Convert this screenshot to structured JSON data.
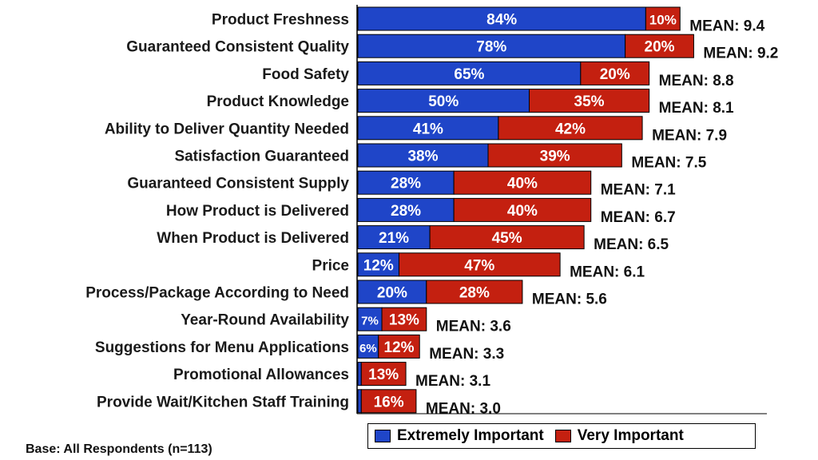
{
  "chart_data": {
    "type": "bar",
    "orientation": "horizontal",
    "stacked": true,
    "categories": [
      "Product Freshness",
      "Guaranteed Consistent Quality",
      "Food Safety",
      "Product Knowledge",
      "Ability to Deliver Quantity Needed",
      "Satisfaction Guaranteed",
      "Guaranteed Consistent Supply",
      "How Product is Delivered",
      "When Product is Delivered",
      "Price",
      "Process/Package According to Need",
      "Year-Round Availability",
      "Suggestions for Menu Applications",
      "Promotional Allowances",
      "Provide Wait/Kitchen Staff Training"
    ],
    "series": [
      {
        "name": "Extremely Important",
        "color": "#1f45c8",
        "values": [
          84,
          78,
          65,
          50,
          41,
          38,
          28,
          28,
          21,
          12,
          20,
          7,
          6,
          1,
          1
        ],
        "labels": [
          "84%",
          "78%",
          "65%",
          "50%",
          "41%",
          "38%",
          "28%",
          "28%",
          "21%",
          "12%",
          "20%",
          "7%",
          "6%",
          "",
          ""
        ]
      },
      {
        "name": "Very Important",
        "color": "#c42010",
        "values": [
          10,
          20,
          20,
          35,
          42,
          39,
          40,
          40,
          45,
          47,
          28,
          13,
          12,
          13,
          16
        ],
        "labels": [
          "10%",
          "20%",
          "20%",
          "35%",
          "42%",
          "39%",
          "40%",
          "40%",
          "45%",
          "47%",
          "28%",
          "13%",
          "12%",
          "13%",
          "16%"
        ]
      }
    ],
    "means": [
      "MEAN: 9.4",
      "MEAN: 9.2",
      "MEAN: 8.8",
      "MEAN: 8.1",
      "MEAN: 7.9",
      "MEAN: 7.5",
      "MEAN: 7.1",
      "MEAN: 6.7",
      "MEAN: 6.5",
      "MEAN: 6.1",
      "MEAN: 5.6",
      "MEAN: 3.6",
      "MEAN: 3.3",
      "MEAN: 3.1",
      "MEAN: 3.0"
    ],
    "xlim": [
      0,
      100
    ],
    "legend": {
      "placement": "bottom-right",
      "entries": [
        "Extremely Important",
        "Very Important"
      ]
    },
    "grid": false
  },
  "footer": {
    "base_note": "Base: All Respondents (n=113)"
  }
}
